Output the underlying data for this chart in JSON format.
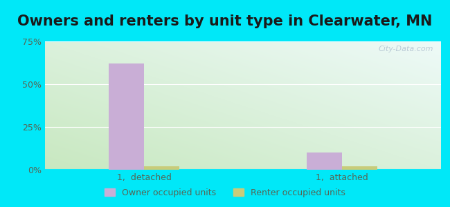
{
  "title": "Owners and renters by unit type in Clearwater, MN",
  "categories": [
    "1,  detached",
    "1,  attached"
  ],
  "owner_values": [
    62,
    10
  ],
  "renter_values": [
    2,
    2
  ],
  "owner_color": "#c9aed6",
  "renter_color": "#c8cc7a",
  "ylim": [
    0,
    75
  ],
  "yticks": [
    0,
    25,
    50,
    75
  ],
  "ytick_labels": [
    "0%",
    "25%",
    "50%",
    "75%"
  ],
  "legend_owner": "Owner occupied units",
  "legend_renter": "Renter occupied units",
  "bg_color": "#00e8f8",
  "bar_width": 0.3,
  "group_positions": [
    1.0,
    3.0
  ],
  "title_fontsize": 15,
  "gradient_left": "#c8e8c0",
  "gradient_right": "#eefaf8",
  "watermark": "City-Data.com"
}
